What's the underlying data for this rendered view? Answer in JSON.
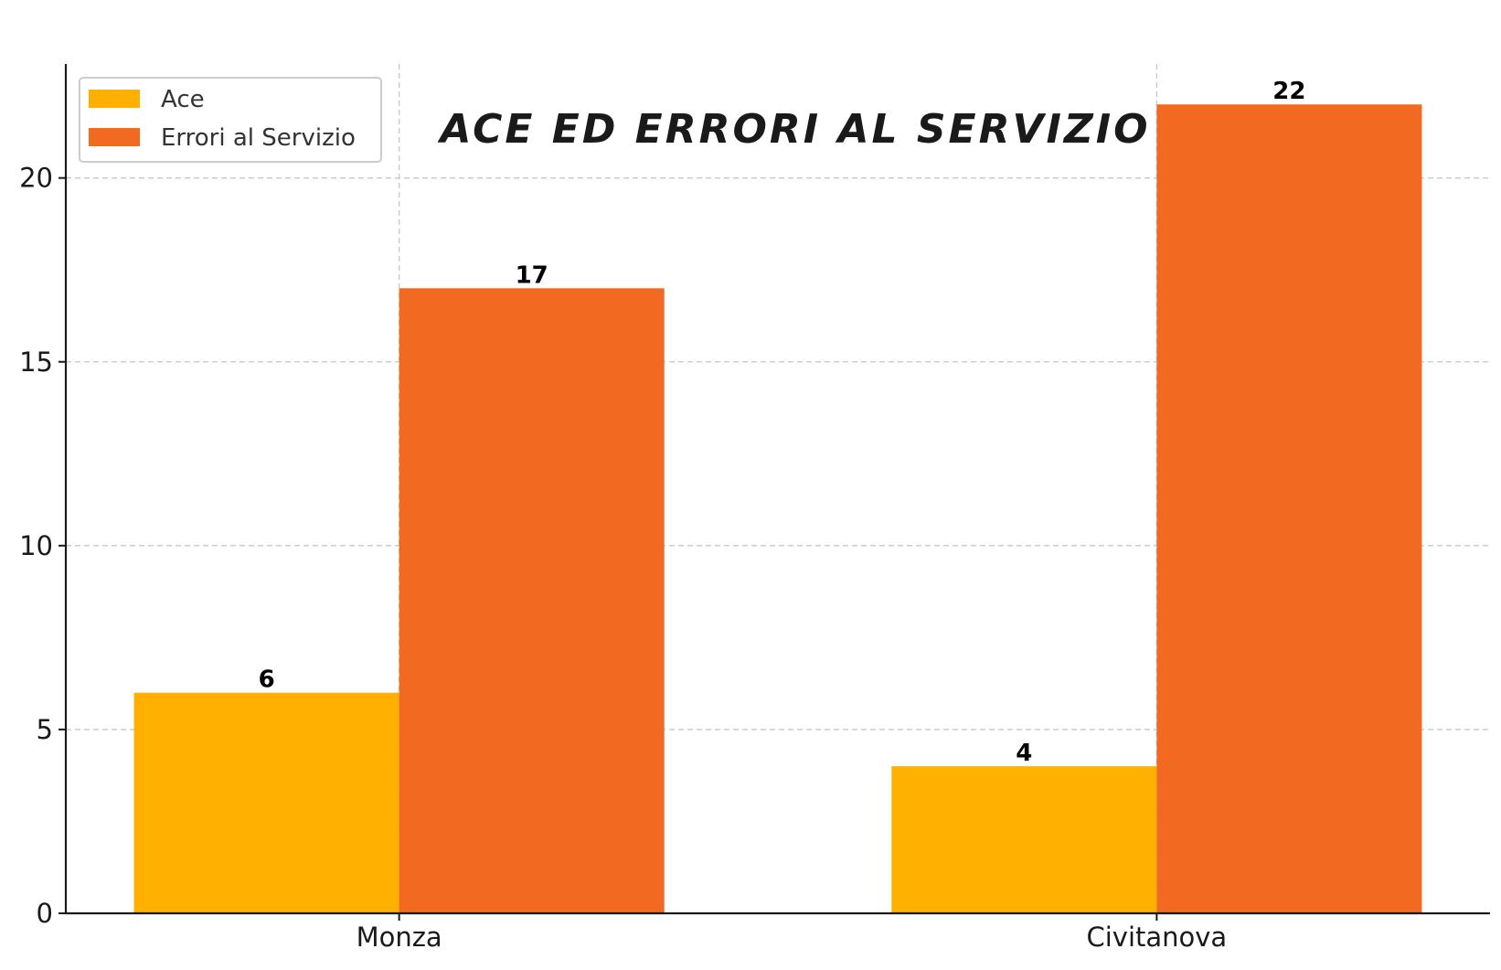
{
  "chart_data": {
    "type": "bar",
    "title": "ACE ED ERRORI AL SERVIZIO",
    "xlabel": "",
    "ylabel": "",
    "categories": [
      "Monza",
      "Civitanova"
    ],
    "series": [
      {
        "name": "Ace",
        "values": [
          6,
          4
        ],
        "color": "#FFB000"
      },
      {
        "name": "Errori al Servizio",
        "values": [
          17,
          22
        ],
        "color": "#F26922"
      }
    ],
    "ylim": [
      0,
      23.1
    ],
    "yticks": [
      0,
      5,
      10,
      15,
      20
    ],
    "grid": true,
    "legend_position": "top-left"
  }
}
